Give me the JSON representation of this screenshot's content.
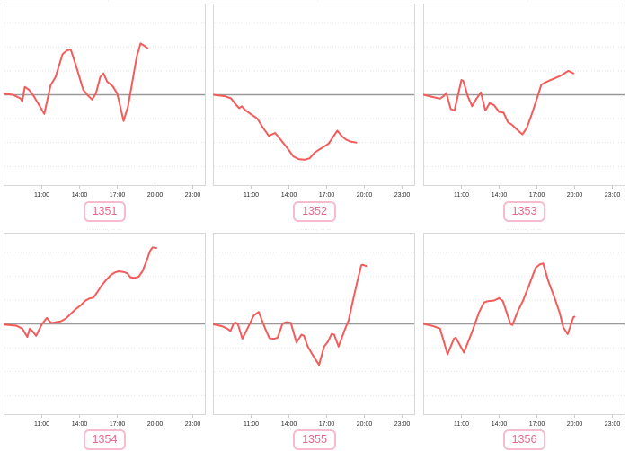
{
  "page": {
    "background": "#ffffff"
  },
  "colors": {
    "line": "#f45b5b",
    "zero_line": "#999999",
    "gridline": "#e4e4e4",
    "plot_border": "#d8d8d8",
    "tick": "#cccccc",
    "axis_label": "#2b2b2b",
    "title_text": "#9a9a9a",
    "badge_border": "#f6bccd",
    "badge_text": "#e8688c"
  },
  "chart_data": [
    {
      "type": "line",
      "label": "1351",
      "title": "·· ····· ····, ··· ···",
      "x_tick_labels": [
        "11:00",
        "14:00",
        "17:00",
        "20:00",
        "23:00"
      ],
      "x_tick_hours": [
        11,
        14,
        17,
        20,
        23
      ],
      "x_range": [
        8,
        24
      ],
      "y_range": [
        -3.8,
        3.8
      ],
      "grid_unit": 1,
      "legend": "none",
      "x": [
        8.0,
        8.7,
        9.3,
        9.45,
        9.65,
        10.0,
        10.35,
        11.2,
        11.7,
        12.1,
        12.65,
        13.0,
        13.3,
        13.7,
        14.3,
        14.7,
        15.0,
        15.3,
        15.65,
        15.9,
        16.2,
        16.65,
        17.0,
        17.5,
        17.85,
        18.2,
        18.55,
        18.85,
        19.15,
        19.4
      ],
      "y": [
        0.05,
        0.0,
        -0.15,
        -0.28,
        0.33,
        0.2,
        -0.05,
        -0.8,
        0.4,
        0.75,
        1.7,
        1.86,
        1.9,
        1.25,
        0.2,
        -0.05,
        -0.2,
        0.05,
        0.75,
        0.9,
        0.55,
        0.35,
        0.05,
        -1.1,
        -0.5,
        0.55,
        1.6,
        2.15,
        2.05,
        1.95
      ]
    },
    {
      "type": "line",
      "label": "1352",
      "title": "·· ····· ····, ··· ···",
      "x_tick_labels": [
        "11:00",
        "14:00",
        "17:00",
        "20:00",
        "23:00"
      ],
      "x_tick_hours": [
        11,
        14,
        17,
        20,
        23
      ],
      "x_range": [
        8,
        24
      ],
      "y_range": [
        -3.8,
        3.8
      ],
      "grid_unit": 1,
      "legend": "none",
      "x": [
        8.0,
        8.9,
        9.4,
        9.8,
        10.05,
        10.25,
        10.55,
        11.0,
        11.5,
        11.9,
        12.4,
        12.9,
        13.3,
        13.9,
        14.35,
        14.8,
        15.25,
        15.65,
        16.05,
        16.45,
        16.8,
        17.15,
        17.5,
        17.85,
        18.2,
        18.55,
        18.9,
        19.35
      ],
      "y": [
        0.0,
        -0.06,
        -0.15,
        -0.42,
        -0.56,
        -0.48,
        -0.65,
        -0.82,
        -1.0,
        -1.35,
        -1.72,
        -1.6,
        -1.85,
        -2.25,
        -2.58,
        -2.7,
        -2.72,
        -2.66,
        -2.42,
        -2.28,
        -2.17,
        -2.05,
        -1.78,
        -1.5,
        -1.73,
        -1.88,
        -1.96,
        -2.0
      ]
    },
    {
      "type": "line",
      "label": "1353",
      "title": "·· ····· ····, ··· ···",
      "x_tick_labels": [
        "11:00",
        "14:00",
        "17:00",
        "20:00",
        "23:00"
      ],
      "x_tick_hours": [
        11,
        14,
        17,
        20,
        23
      ],
      "x_range": [
        8,
        24
      ],
      "y_range": [
        -3.8,
        3.8
      ],
      "grid_unit": 1,
      "legend": "none",
      "x": [
        8.0,
        8.6,
        9.3,
        9.6,
        9.8,
        10.15,
        10.45,
        11.0,
        11.15,
        11.5,
        11.85,
        12.2,
        12.55,
        12.9,
        13.25,
        13.6,
        14.0,
        14.35,
        14.7,
        15.0,
        15.4,
        15.85,
        16.2,
        16.6,
        17.0,
        17.35,
        17.6,
        18.0,
        18.45,
        18.9,
        19.5,
        19.9
      ],
      "y": [
        0.0,
        -0.08,
        -0.16,
        -0.05,
        0.07,
        -0.6,
        -0.66,
        0.62,
        0.58,
        -0.05,
        -0.48,
        -0.16,
        0.1,
        -0.66,
        -0.35,
        -0.44,
        -0.72,
        -0.75,
        -1.15,
        -1.25,
        -1.45,
        -1.66,
        -1.38,
        -0.8,
        -0.16,
        0.42,
        0.5,
        0.6,
        0.7,
        0.8,
        1.0,
        0.9
      ]
    },
    {
      "type": "line",
      "label": "1354",
      "title": "·· ····· ····, ··· ···",
      "x_tick_labels": [
        "11:00",
        "14:00",
        "17:00",
        "20:00",
        "23:00"
      ],
      "x_tick_hours": [
        11,
        14,
        17,
        20,
        23
      ],
      "x_range": [
        8,
        24
      ],
      "y_range": [
        -3.8,
        3.8
      ],
      "grid_unit": 1,
      "legend": "none",
      "x": [
        8.0,
        9.0,
        9.45,
        9.85,
        10.05,
        10.25,
        10.55,
        11.0,
        11.4,
        11.75,
        12.1,
        12.5,
        12.9,
        13.3,
        13.7,
        14.1,
        14.45,
        14.8,
        15.1,
        15.4,
        15.75,
        16.1,
        16.5,
        16.8,
        17.1,
        17.5,
        17.8,
        18.05,
        18.4,
        18.7,
        19.0,
        19.3,
        19.6,
        19.8,
        20.1
      ],
      "y": [
        -0.03,
        -0.08,
        -0.2,
        -0.55,
        -0.2,
        -0.3,
        -0.5,
        -0.02,
        0.25,
        0.03,
        0.07,
        0.1,
        0.22,
        0.42,
        0.62,
        0.78,
        0.97,
        1.07,
        1.1,
        1.32,
        1.6,
        1.83,
        2.05,
        2.15,
        2.2,
        2.17,
        2.12,
        1.95,
        1.93,
        1.97,
        2.2,
        2.6,
        3.05,
        3.2,
        3.18
      ]
    },
    {
      "type": "line",
      "label": "1355",
      "title": "·· ····· ····, ··· ···",
      "x_tick_labels": [
        "11:00",
        "14:00",
        "17:00",
        "20:00",
        "23:00"
      ],
      "x_tick_hours": [
        11,
        14,
        17,
        20,
        23
      ],
      "x_range": [
        8,
        24
      ],
      "y_range": [
        -3.8,
        3.8
      ],
      "grid_unit": 1,
      "legend": "none",
      "x": [
        8.0,
        8.7,
        9.1,
        9.35,
        9.6,
        9.75,
        9.95,
        10.3,
        10.7,
        11.2,
        11.6,
        12.1,
        12.45,
        12.8,
        13.1,
        13.5,
        13.8,
        14.15,
        14.6,
        15.0,
        15.2,
        15.5,
        16.0,
        16.4,
        16.8,
        17.1,
        17.4,
        17.6,
        17.95,
        18.4,
        18.75,
        19.1,
        19.45,
        19.75,
        19.85,
        20.15
      ],
      "y": [
        -0.02,
        -0.1,
        -0.2,
        -0.3,
        0.0,
        0.06,
        -0.02,
        -0.62,
        -0.2,
        0.35,
        0.5,
        -0.18,
        -0.6,
        -0.63,
        -0.58,
        0.02,
        0.07,
        0.05,
        -0.78,
        -0.45,
        -0.5,
        -0.95,
        -1.4,
        -1.72,
        -0.95,
        -0.75,
        -0.42,
        -0.45,
        -0.95,
        -0.3,
        0.15,
        1.0,
        1.8,
        2.45,
        2.48,
        2.42
      ]
    },
    {
      "type": "line",
      "label": "1356",
      "title": "·· ····· ····, ··· ···",
      "x_tick_labels": [
        "11:00",
        "14:00",
        "17:00",
        "20:00",
        "23:00"
      ],
      "x_tick_hours": [
        11,
        14,
        17,
        20,
        23
      ],
      "x_range": [
        8,
        24
      ],
      "y_range": [
        -3.8,
        3.8
      ],
      "grid_unit": 1,
      "legend": "none",
      "x": [
        8.0,
        8.8,
        9.3,
        9.9,
        10.4,
        10.55,
        11.2,
        11.8,
        12.4,
        12.8,
        13.1,
        13.6,
        14.0,
        14.3,
        14.9,
        15.05,
        15.5,
        15.9,
        16.4,
        16.9,
        17.25,
        17.5,
        17.9,
        18.4,
        18.8,
        19.1,
        19.45,
        19.9,
        20.0
      ],
      "y": [
        0.0,
        -0.1,
        -0.2,
        -1.28,
        -0.62,
        -0.58,
        -1.2,
        -0.4,
        0.48,
        0.9,
        0.95,
        0.98,
        1.08,
        0.95,
        0.0,
        -0.05,
        0.55,
        0.98,
        1.65,
        2.35,
        2.5,
        2.53,
        1.8,
        1.1,
        0.48,
        -0.15,
        -0.43,
        0.28,
        0.3
      ]
    }
  ]
}
